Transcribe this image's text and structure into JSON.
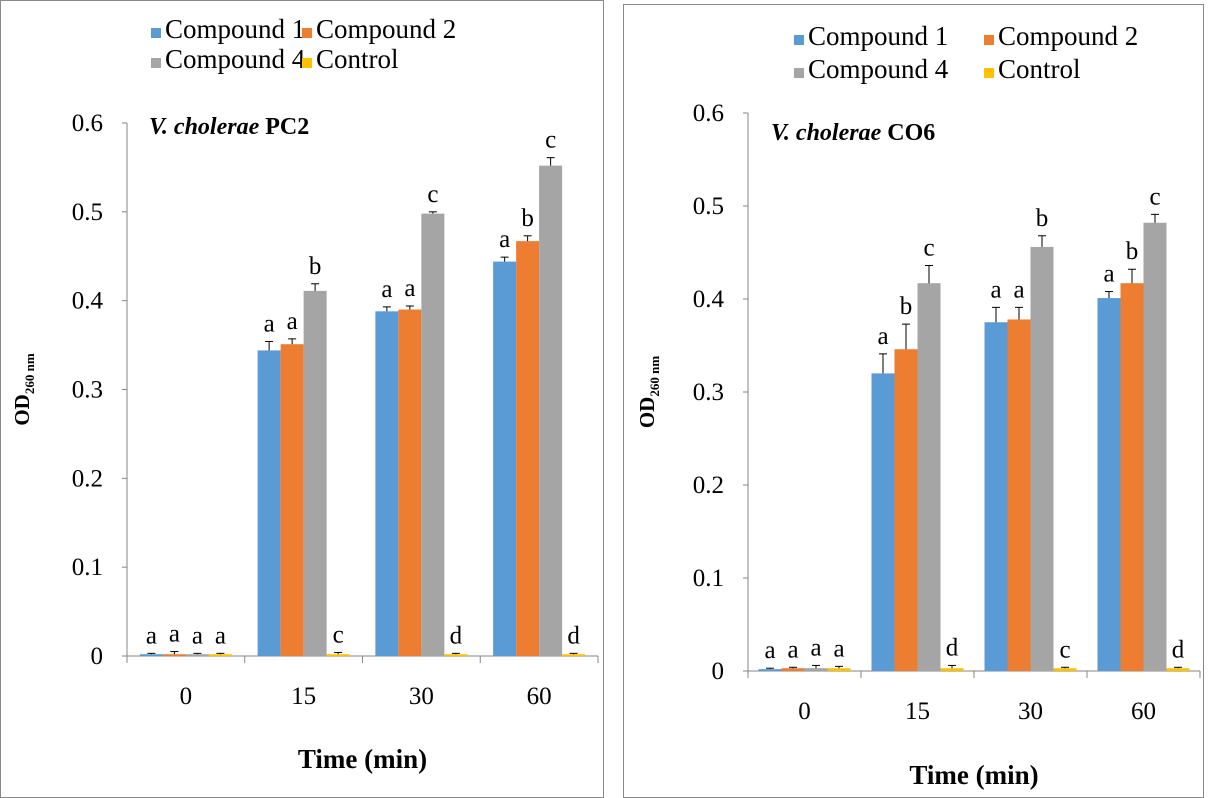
{
  "legend": {
    "items": [
      {
        "label": "Compound 1",
        "color": "#5b9bd5"
      },
      {
        "label": "Compound 2",
        "color": "#ed7d31"
      },
      {
        "label": "Compound 4",
        "color": "#a5a5a5"
      },
      {
        "label": "Control",
        "color": "#ffc000"
      }
    ]
  },
  "chart_data": [
    {
      "type": "bar",
      "title_italic": "V. cholerae",
      "title_bold": "PC2",
      "xlabel": "Time (min)",
      "ylabel_main": "OD",
      "ylabel_sub": "260 nm",
      "categories": [
        "0",
        "15",
        "30",
        "60"
      ],
      "ylim": [
        0,
        0.6
      ],
      "yticks": [
        "0",
        "0.1",
        "0.2",
        "0.3",
        "0.4",
        "0.5",
        "0.6"
      ],
      "series": [
        {
          "name": "Compound 1",
          "color": "#5b9bd5",
          "values": [
            0.002,
            0.344,
            0.388,
            0.444
          ],
          "errors": [
            0.001,
            0.01,
            0.005,
            0.005
          ],
          "letters": [
            "a",
            "a",
            "a",
            "a"
          ]
        },
        {
          "name": "Compound 2",
          "color": "#ed7d31",
          "values": [
            0.002,
            0.351,
            0.39,
            0.467
          ],
          "errors": [
            0.003,
            0.006,
            0.004,
            0.006
          ],
          "letters": [
            "a",
            "a",
            "a",
            "b"
          ]
        },
        {
          "name": "Compound 4",
          "color": "#a5a5a5",
          "values": [
            0.002,
            0.411,
            0.498,
            0.552
          ],
          "errors": [
            0.001,
            0.008,
            0.002,
            0.009
          ],
          "letters": [
            "a",
            "b",
            "c",
            "c"
          ]
        },
        {
          "name": "Control",
          "color": "#ffc000",
          "values": [
            0.002,
            0.002,
            0.002,
            0.002
          ],
          "errors": [
            0.001,
            0.002,
            0.001,
            0.001
          ],
          "letters": [
            "a",
            "c",
            "d",
            "d"
          ]
        }
      ]
    },
    {
      "type": "bar",
      "title_italic": "V. cholerae",
      "title_bold": "CO6",
      "xlabel": "Time (min)",
      "ylabel_main": "OD",
      "ylabel_sub": "260 nm",
      "categories": [
        "0",
        "15",
        "30",
        "60"
      ],
      "ylim": [
        0,
        0.6
      ],
      "yticks": [
        "0",
        "0.1",
        "0.2",
        "0.3",
        "0.4",
        "0.5",
        "0.6"
      ],
      "series": [
        {
          "name": "Compound 1",
          "color": "#5b9bd5",
          "values": [
            0.002,
            0.32,
            0.375,
            0.401
          ],
          "errors": [
            0.001,
            0.021,
            0.016,
            0.007
          ],
          "letters": [
            "a",
            "a",
            "a",
            "a"
          ]
        },
        {
          "name": "Compound 2",
          "color": "#ed7d31",
          "values": [
            0.003,
            0.346,
            0.378,
            0.417
          ],
          "errors": [
            0.001,
            0.027,
            0.013,
            0.015
          ],
          "letters": [
            "a",
            "b",
            "a",
            "b"
          ]
        },
        {
          "name": "Compound 4",
          "color": "#a5a5a5",
          "values": [
            0.003,
            0.417,
            0.456,
            0.482
          ],
          "errors": [
            0.003,
            0.019,
            0.012,
            0.009
          ],
          "letters": [
            "a",
            "c",
            "b",
            "c"
          ]
        },
        {
          "name": "Control",
          "color": "#ffc000",
          "values": [
            0.003,
            0.003,
            0.003,
            0.003
          ],
          "errors": [
            0.002,
            0.003,
            0.001,
            0.001
          ],
          "letters": [
            "a",
            "d",
            "c",
            "d"
          ]
        }
      ]
    }
  ]
}
